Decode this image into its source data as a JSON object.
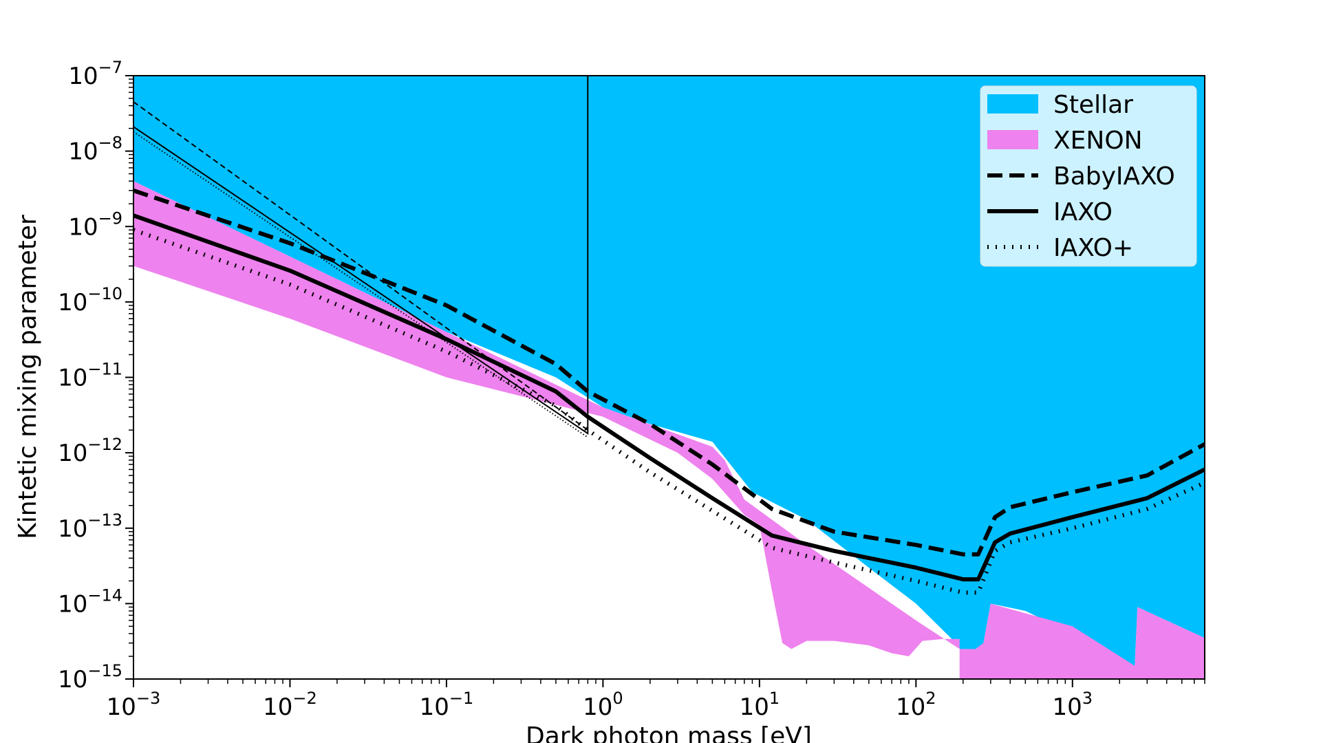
{
  "chart_data": {
    "type": "area",
    "title": "",
    "xlabel": "Dark photon mass [eV]",
    "ylabel": "Kintetic mixing parameter",
    "xscale": "log",
    "yscale": "log",
    "xlim": [
      0.001,
      7000
    ],
    "ylim": [
      1e-15,
      1e-07
    ],
    "grid": false,
    "legend_position": "top-right",
    "x_ticks": [
      {
        "value": 0.001,
        "base": "10",
        "exp": "−3"
      },
      {
        "value": 0.01,
        "base": "10",
        "exp": "−2"
      },
      {
        "value": 0.1,
        "base": "10",
        "exp": "−1"
      },
      {
        "value": 1,
        "base": "10",
        "exp": "0"
      },
      {
        "value": 10,
        "base": "10",
        "exp": "1"
      },
      {
        "value": 100,
        "base": "10",
        "exp": "2"
      },
      {
        "value": 1000,
        "base": "10",
        "exp": "3"
      }
    ],
    "y_ticks": [
      {
        "value": 1e-15,
        "base": "10",
        "exp": "−15"
      },
      {
        "value": 1e-14,
        "base": "10",
        "exp": "−14"
      },
      {
        "value": 1e-13,
        "base": "10",
        "exp": "−13"
      },
      {
        "value": 1e-12,
        "base": "10",
        "exp": "−12"
      },
      {
        "value": 1e-11,
        "base": "10",
        "exp": "−11"
      },
      {
        "value": 1e-10,
        "base": "10",
        "exp": "−10"
      },
      {
        "value": 1e-09,
        "base": "10",
        "exp": "−9"
      },
      {
        "value": 1e-08,
        "base": "10",
        "exp": "−8"
      },
      {
        "value": 1e-07,
        "base": "10",
        "exp": "−7"
      }
    ],
    "regions": [
      {
        "name": "Stellar",
        "color": "#00bfff",
        "boundary": [
          [
            0.001,
            4e-09
          ],
          [
            0.1,
            4e-11
          ],
          [
            0.5,
            1e-11
          ],
          [
            1,
            4e-12
          ],
          [
            2,
            2.4e-12
          ],
          [
            5,
            1.4e-12
          ],
          [
            9,
            3e-13
          ],
          [
            20,
            1.3e-13
          ],
          [
            50,
            3e-14
          ],
          [
            100,
            1e-14
          ],
          [
            180,
            3e-15
          ],
          [
            200,
            2.2e-15
          ],
          [
            240,
            2.3e-15
          ],
          [
            270,
            3e-15
          ],
          [
            300,
            1e-14
          ],
          [
            500,
            8e-15
          ],
          [
            1000,
            4e-15
          ],
          [
            2000,
            1.5e-15
          ],
          [
            2400,
            1.2e-15
          ],
          [
            2500,
            1.5e-15
          ],
          [
            2600,
            9e-15
          ],
          [
            7000,
            3.5e-15
          ]
        ]
      },
      {
        "name": "XENON",
        "color": "#ee82ee",
        "boundary_upper": [
          [
            0.001,
            4e-09
          ],
          [
            0.1,
            4e-11
          ],
          [
            1,
            4e-12
          ],
          [
            5,
            1.2e-12
          ],
          [
            6,
            8e-13
          ],
          [
            8,
            2.4e-13
          ],
          [
            20,
            6e-14
          ],
          [
            100,
            6e-15
          ],
          [
            190,
            2.5e-15
          ],
          [
            240,
            2.5e-15
          ],
          [
            270,
            3e-15
          ],
          [
            300,
            1e-14
          ],
          [
            1000,
            5e-15
          ],
          [
            2500,
            1.5e-15
          ],
          [
            2600,
            9e-15
          ],
          [
            7000,
            3.5e-15
          ]
        ],
        "boundary_lower": [
          [
            0.001,
            3e-10
          ],
          [
            0.01,
            6e-11
          ],
          [
            0.1,
            1e-11
          ],
          [
            1,
            3e-12
          ],
          [
            3,
            1e-12
          ],
          [
            5,
            4.5e-13
          ],
          [
            8,
            1.5e-13
          ],
          [
            10,
            1.1e-13
          ],
          [
            12,
            1.5e-14
          ],
          [
            14,
            3e-15
          ],
          [
            16,
            2.5e-15
          ],
          [
            20,
            3.2e-15
          ],
          [
            30,
            3.2e-15
          ],
          [
            50,
            2.8e-15
          ],
          [
            70,
            2.2e-15
          ],
          [
            90,
            2e-15
          ],
          [
            110,
            3.2e-15
          ],
          [
            150,
            3.4e-15
          ],
          [
            190,
            3.4e-15
          ],
          [
            190,
            1e-15
          ],
          [
            7000,
            1e-15
          ]
        ]
      }
    ],
    "series": [
      {
        "name": "BabyIAXO",
        "style": "dashed",
        "points": [
          [
            0.001,
            3e-09
          ],
          [
            0.01,
            6e-10
          ],
          [
            0.1,
            9e-11
          ],
          [
            0.5,
            1.5e-11
          ],
          [
            0.8,
            6.5e-12
          ],
          [
            2,
            2.4e-12
          ],
          [
            5,
            7e-13
          ],
          [
            12,
            1.8e-13
          ],
          [
            30,
            9e-14
          ],
          [
            100,
            6e-14
          ],
          [
            200,
            4.5e-14
          ],
          [
            250,
            4.5e-14
          ],
          [
            320,
            1.4e-13
          ],
          [
            400,
            1.9e-13
          ],
          [
            1000,
            3e-13
          ],
          [
            3000,
            5e-13
          ],
          [
            7000,
            1.3e-12
          ]
        ]
      },
      {
        "name": "IAXO",
        "style": "solid",
        "points": [
          [
            0.001,
            1.4e-09
          ],
          [
            0.01,
            2.6e-10
          ],
          [
            0.1,
            3.2e-11
          ],
          [
            0.5,
            6.5e-12
          ],
          [
            0.8,
            3e-12
          ],
          [
            2,
            8.5e-13
          ],
          [
            5,
            2.5e-13
          ],
          [
            12,
            8e-14
          ],
          [
            30,
            5e-14
          ],
          [
            100,
            3e-14
          ],
          [
            200,
            2.1e-14
          ],
          [
            250,
            2.1e-14
          ],
          [
            320,
            6.5e-14
          ],
          [
            400,
            8.5e-14
          ],
          [
            1000,
            1.4e-13
          ],
          [
            3000,
            2.5e-13
          ],
          [
            7000,
            6e-13
          ]
        ]
      },
      {
        "name": "IAXO+",
        "style": "dotted",
        "points": [
          [
            0.001,
            9e-10
          ],
          [
            0.01,
            1.7e-10
          ],
          [
            0.1,
            2.2e-11
          ],
          [
            0.5,
            4.2e-12
          ],
          [
            0.8,
            2e-12
          ],
          [
            2,
            5.5e-13
          ],
          [
            5,
            1.7e-13
          ],
          [
            12,
            5.5e-14
          ],
          [
            30,
            3.5e-14
          ],
          [
            100,
            2e-14
          ],
          [
            200,
            1.4e-14
          ],
          [
            250,
            1.4e-14
          ],
          [
            320,
            5e-14
          ],
          [
            400,
            6.5e-14
          ],
          [
            1000,
            1e-13
          ],
          [
            3000,
            1.8e-13
          ],
          [
            7000,
            4e-13
          ]
        ]
      }
    ],
    "thin_series": [
      {
        "style": "dashed",
        "points": [
          [
            0.001,
            4.5e-08
          ],
          [
            0.8,
            2e-12
          ]
        ]
      },
      {
        "style": "solid",
        "points": [
          [
            0.001,
            2.1e-08
          ],
          [
            0.8,
            1.8e-12
          ],
          [
            0.8,
            1e-07
          ]
        ]
      },
      {
        "style": "dotted",
        "points": [
          [
            0.001,
            1.8e-08
          ],
          [
            0.8,
            1.6e-12
          ]
        ]
      }
    ]
  }
}
